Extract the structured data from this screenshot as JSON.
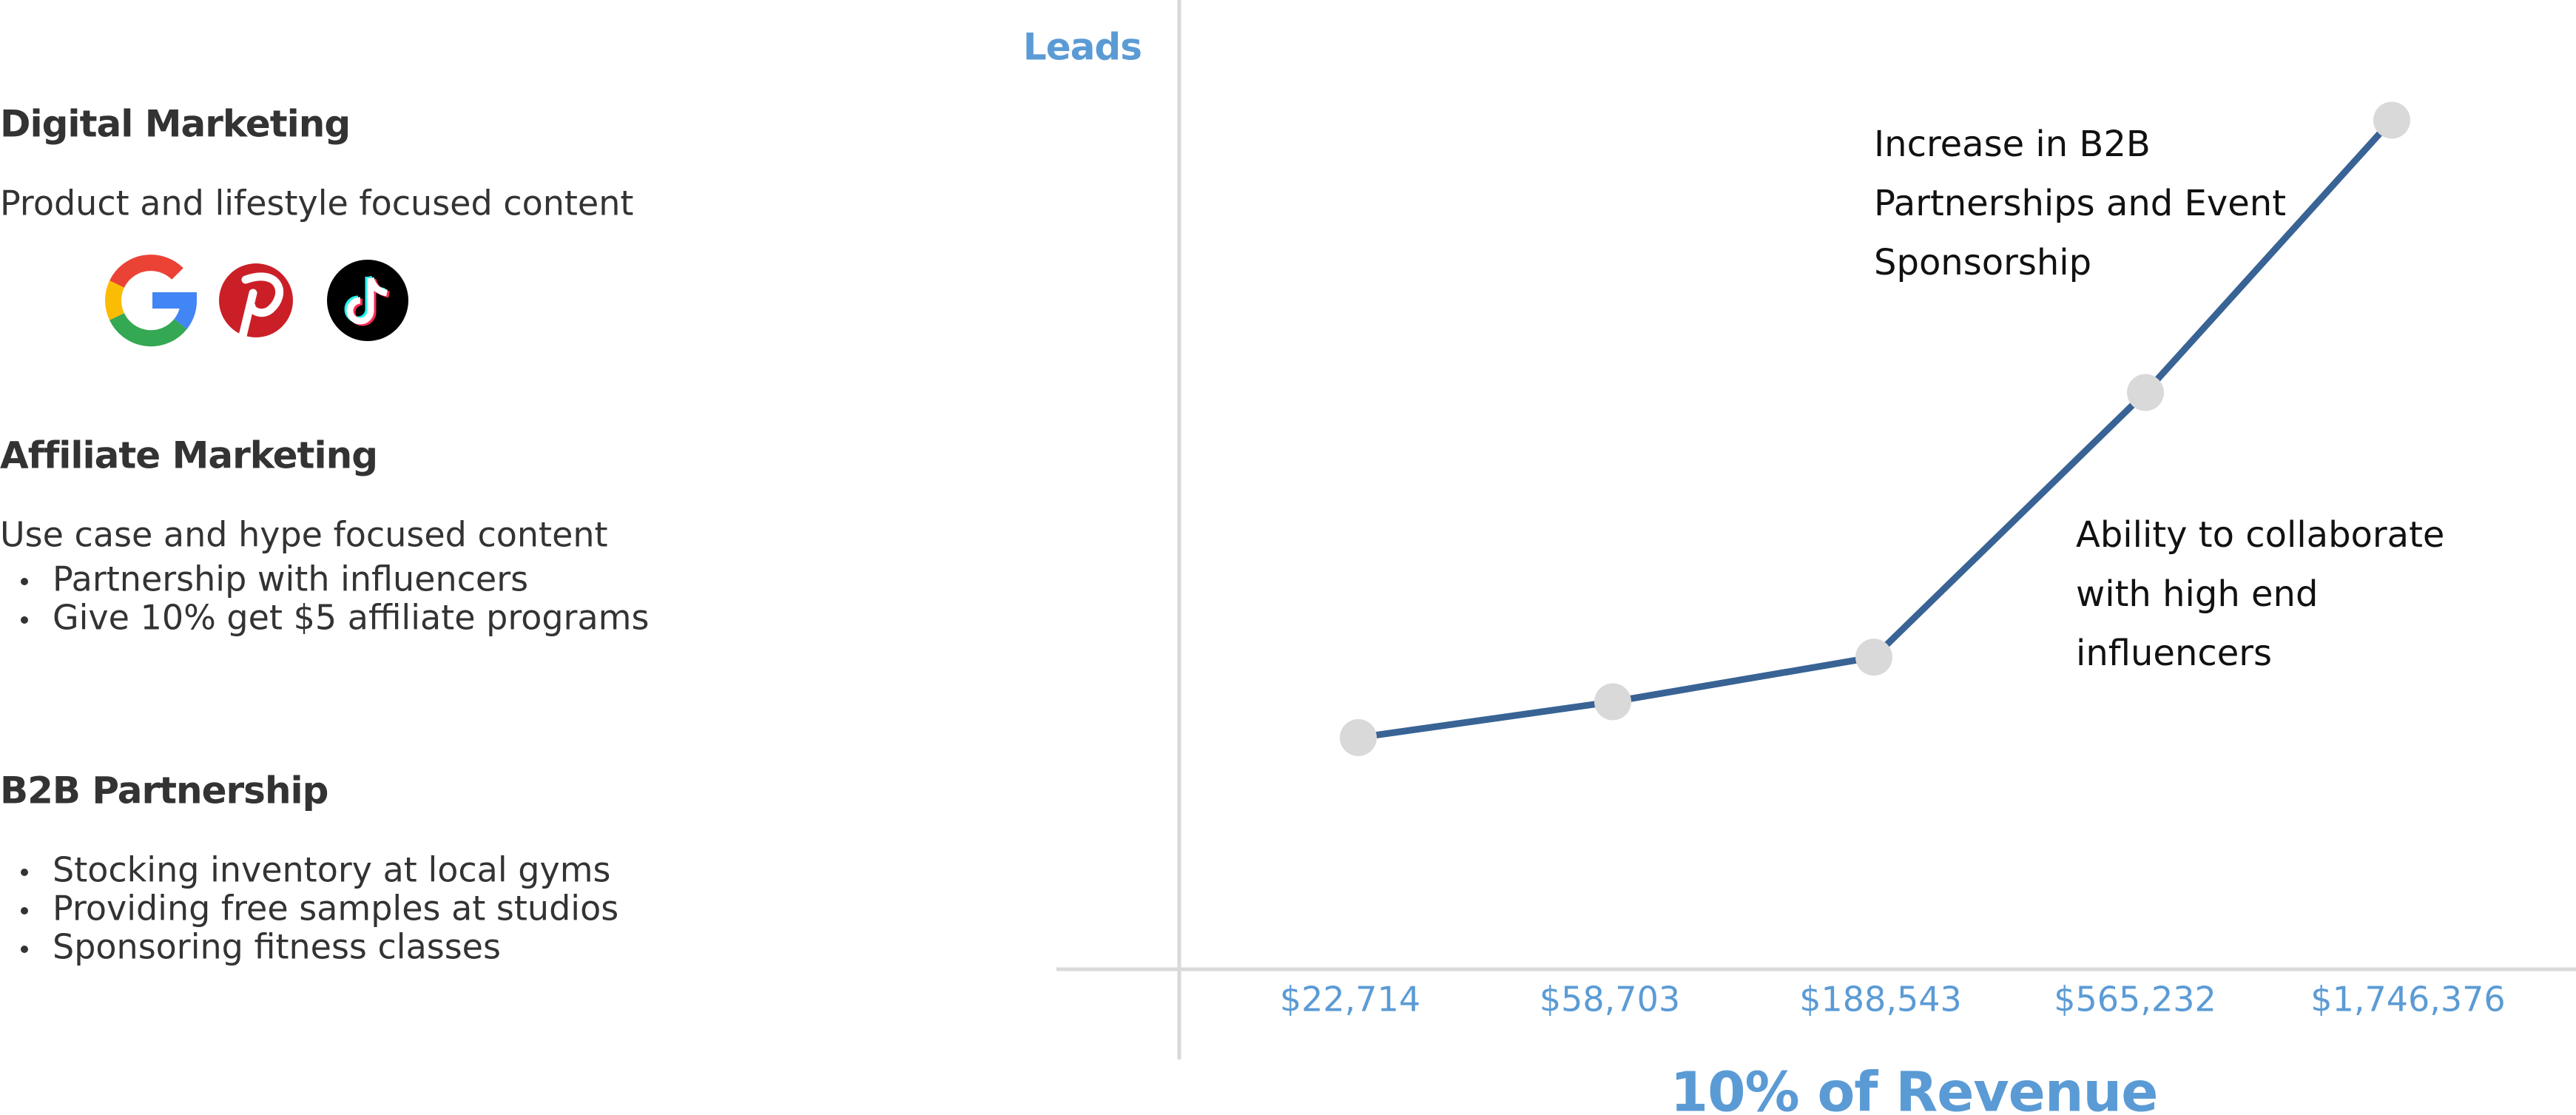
{
  "sections": [
    {
      "title": "Digital Marketing",
      "text": "Product and lifestyle focused content"
    },
    {
      "title": "Affiliate Marketing",
      "text": "Use case and hype focused content",
      "bullets": [
        "Partnership with influencers",
        "Give 10% get $5 affiliate programs"
      ]
    },
    {
      "title": "B2B Partnership",
      "bullets": [
        "Stocking inventory at local gyms",
        "Providing free samples at studios",
        "Sponsoring fitness classes"
      ]
    }
  ],
  "chart_data": {
    "type": "line",
    "y_label": "Leads",
    "x_label": "10% of Revenue",
    "categories": [
      "$22,714",
      "$58,703",
      "$188,543",
      "$565,232",
      "$1,746,376"
    ],
    "values": [
      23.9,
      27.6,
      32.2,
      59.5,
      87.6
    ],
    "ylim": [
      0,
      100
    ],
    "color": "#386394",
    "marker_color": "#d9d9d9",
    "annotations": [
      {
        "lines": [
          "Increase in B2B",
          "Partnerships and Event",
          "Sponsorship"
        ]
      },
      {
        "lines": [
          "Ability to collaborate",
          "with high end",
          "influencers"
        ]
      }
    ]
  }
}
